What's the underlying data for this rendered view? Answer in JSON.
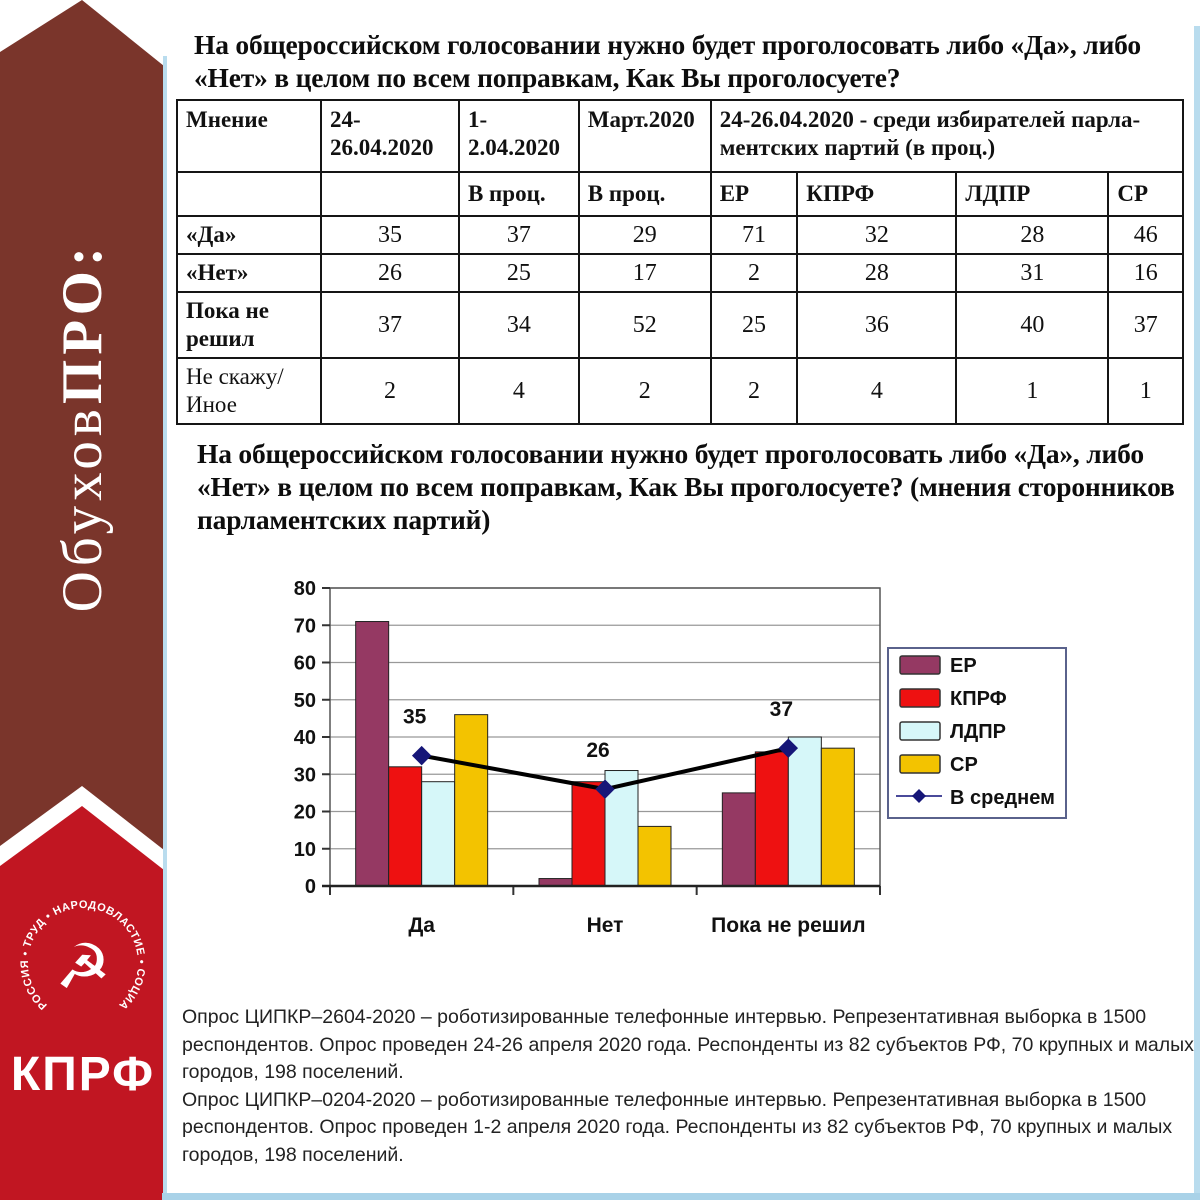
{
  "sidebar": {
    "brand_text_regular": "Обухов",
    "brand_text_bold": "ПРО:",
    "logo": {
      "circle_text": "РОССИЯ • ТРУД • НАРОДОВЛАСТИЕ • СОЦИАЛИЗМ •",
      "emblem_glyph": "☭",
      "party_name": "КПРФ"
    },
    "colors": {
      "maroon": "#7a352b",
      "red": "#c11622",
      "frame_blue": "#b9dcee"
    }
  },
  "table_title": "На общероссийском голосовании нужно будет проголосовать либо «Да», либо «Нет» в целом по всем поправкам, Как Вы проголосуете?",
  "table": {
    "header_row1": [
      "Мнение",
      "24-\n26.04.2020",
      "1-\n2.04.2020",
      "Март.2020",
      "24-26.04.2020 - среди избирателей парла-\nментских партий (в проц.)"
    ],
    "header_row2": [
      "",
      "",
      "В проц.",
      "В проц.",
      "ЕР",
      "КПРФ",
      "ЛДПР",
      "СР"
    ],
    "col_widths_pct": [
      14.3,
      13.7,
      11.9,
      13.1,
      8.6,
      15.8,
      15.1,
      7.4
    ],
    "rows": [
      {
        "label": "«Да»",
        "bold": true,
        "tall": false,
        "values": [
          35,
          37,
          29,
          71,
          32,
          28,
          46
        ]
      },
      {
        "label": "«Нет»",
        "bold": true,
        "tall": false,
        "values": [
          26,
          25,
          17,
          2,
          28,
          31,
          16
        ]
      },
      {
        "label": "Пока не\nрешил",
        "bold": true,
        "tall": true,
        "values": [
          37,
          34,
          52,
          25,
          36,
          40,
          37
        ]
      },
      {
        "label": "Не скажу/\nИное",
        "bold": false,
        "tall": true,
        "values": [
          2,
          4,
          2,
          2,
          4,
          1,
          1
        ]
      }
    ]
  },
  "chart_title": "На общероссийском голосовании нужно будет проголосовать либо «Да», либо «Нет» в целом по всем поправкам, Как Вы проголосуете? (мнения сторонников парламентских партий)",
  "chart_data": {
    "type": "bar",
    "categories": [
      "Да",
      "Нет",
      "Пока не решил"
    ],
    "series": [
      {
        "name": "ЕР",
        "color": "#953963",
        "values": [
          71,
          2,
          25
        ]
      },
      {
        "name": "КПРФ",
        "color": "#ee1111",
        "values": [
          32,
          28,
          36
        ]
      },
      {
        "name": "ЛДПР",
        "color": "#d6f7f9",
        "values": [
          28,
          31,
          40
        ]
      },
      {
        "name": "СР",
        "color": "#f3c300",
        "values": [
          46,
          16,
          37
        ]
      }
    ],
    "line_series": {
      "name": "В среднем",
      "color": "#161678",
      "values": [
        35,
        26,
        37
      ],
      "marker": "diamond",
      "show_labels": true
    },
    "ylim": [
      0,
      80
    ],
    "ytick_step": 10,
    "grid": true,
    "legend_position": "right"
  },
  "footer": {
    "paragraphs": [
      "Опрос ЦИПКР–2604-2020 – роботизированные телефонные интервью. Репрезентативная выборка в 1500 респондентов. Опрос проведен 24-26 апреля 2020 года. Респонденты из 82 субъектов РФ, 70 крупных и малых городов, 198 поселений.",
      "Опрос ЦИПКР–0204-2020 – роботизированные телефонные интервью. Репрезентативная выборка в 1500 респондентов. Опрос проведен 1-2 апреля 2020 года. Респонденты из 82 субъектов РФ, 70 крупных и малых городов, 198 поселений."
    ]
  }
}
